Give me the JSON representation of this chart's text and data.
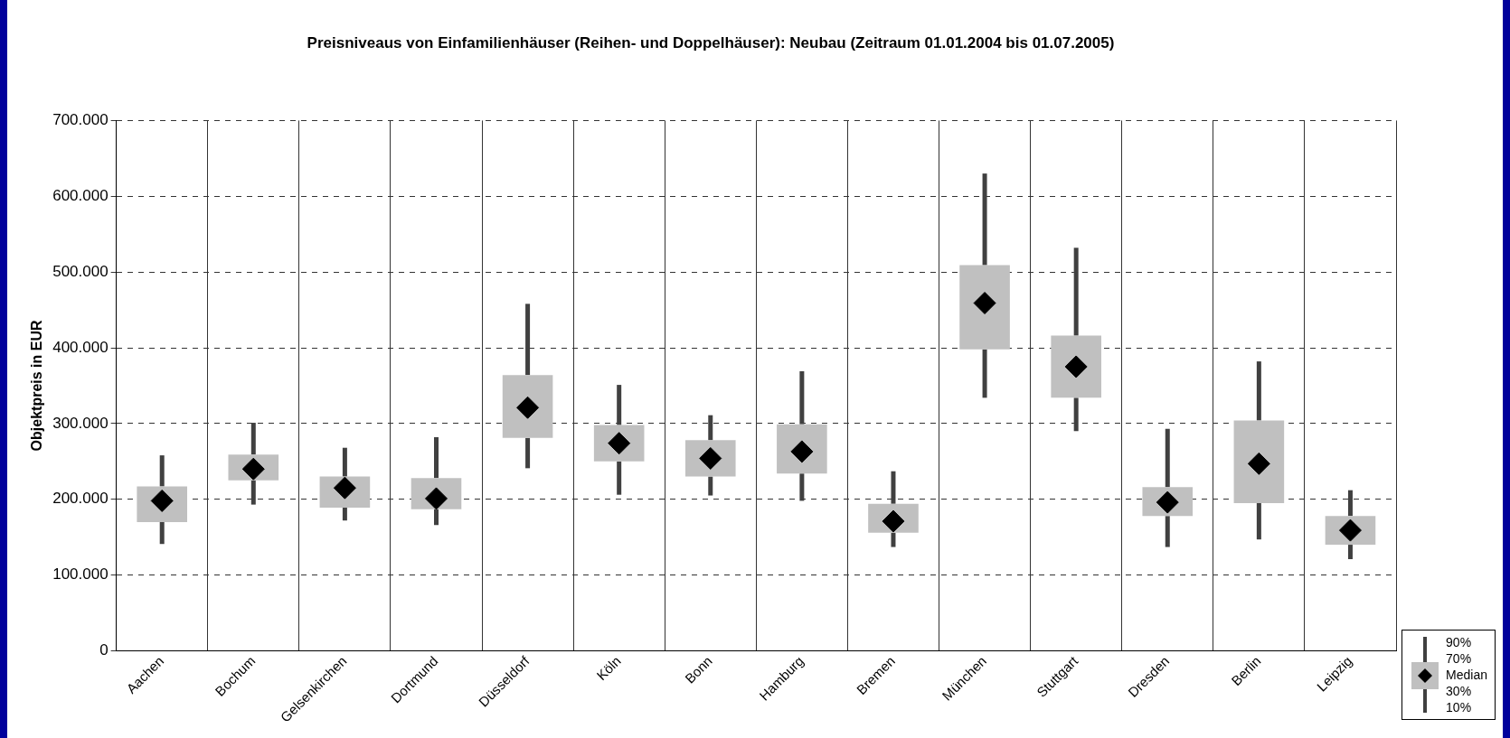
{
  "chart_data": {
    "type": "box",
    "title": "Preisniveaus von Einfamilienhäuser (Reihen- und Doppelhäuser): Neubau (Zeitraum 01.01.2004 bis 01.07.2005)",
    "ylabel": "Objektpreis in EUR",
    "categories": [
      "Aachen",
      "Bochum",
      "Gelsenkirchen",
      "Dortmund",
      "Düsseldorf",
      "Köln",
      "Bonn",
      "Hamburg",
      "Bremen",
      "München",
      "Stuttgart",
      "Dresden",
      "Berlin",
      "Leipzig"
    ],
    "ylim": [
      0,
      700000
    ],
    "yticks": [
      {
        "value": 0,
        "label": "0"
      },
      {
        "value": 100000,
        "label": "100.000"
      },
      {
        "value": 200000,
        "label": "200.000"
      },
      {
        "value": 300000,
        "label": "300.000"
      },
      {
        "value": 400000,
        "label": "400.000"
      },
      {
        "value": 500000,
        "label": "500.000"
      },
      {
        "value": 600000,
        "label": "600.000"
      },
      {
        "value": 700000,
        "label": "700.000"
      }
    ],
    "grid": true,
    "marker": "diamond",
    "annotations": [
      "90%",
      "70%",
      "Median",
      "30%",
      "10%"
    ],
    "series": [
      {
        "color": "#c0c0c0",
        "boxes": [
          {
            "low": 141000,
            "q1": 170000,
            "median": 198000,
            "q3": 217000,
            "high": 258000
          },
          {
            "low": 193000,
            "q1": 225000,
            "median": 240000,
            "q3": 259000,
            "high": 301000
          },
          {
            "low": 172000,
            "q1": 189000,
            "median": 215000,
            "q3": 230000,
            "high": 268000
          },
          {
            "low": 166000,
            "q1": 187000,
            "median": 201000,
            "q3": 228000,
            "high": 282000
          },
          {
            "low": 241000,
            "q1": 281000,
            "median": 321000,
            "q3": 364000,
            "high": 458000
          },
          {
            "low": 206000,
            "q1": 250000,
            "median": 274000,
            "q3": 298000,
            "high": 351000
          },
          {
            "low": 205000,
            "q1": 230000,
            "median": 254000,
            "q3": 278000,
            "high": 311000
          },
          {
            "low": 198000,
            "q1": 234000,
            "median": 263000,
            "q3": 299000,
            "high": 369000
          },
          {
            "low": 137000,
            "q1": 156000,
            "median": 171000,
            "q3": 194000,
            "high": 237000
          },
          {
            "low": 334000,
            "q1": 398000,
            "median": 459000,
            "q3": 509000,
            "high": 630000
          },
          {
            "low": 290000,
            "q1": 334000,
            "median": 375000,
            "q3": 416000,
            "high": 532000
          },
          {
            "low": 137000,
            "q1": 178000,
            "median": 196000,
            "q3": 216000,
            "high": 293000
          },
          {
            "low": 147000,
            "q1": 195000,
            "median": 247000,
            "q3": 304000,
            "high": 382000
          },
          {
            "low": 121000,
            "q1": 140000,
            "median": 159000,
            "q3": 178000,
            "high": 212000
          }
        ]
      }
    ]
  }
}
